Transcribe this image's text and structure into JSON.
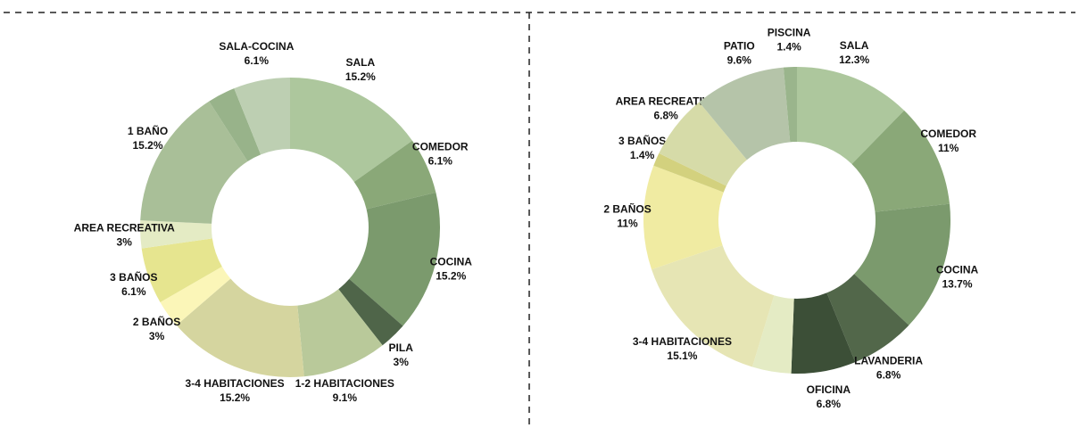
{
  "chart_data": [
    {
      "type": "pie",
      "categories": [
        "SALA",
        "COMEDOR",
        "COCINA",
        "PILA",
        "1-2 HABITACIONES",
        "3-4 HABITACIONES",
        "2 BAÑOS",
        "3 BAÑOS",
        "AREA RECREATIVA",
        "1 BAÑO",
        null,
        "SALA-COCINA"
      ],
      "values": [
        15.2,
        6.1,
        15.2,
        3,
        9.1,
        15.2,
        3,
        6.1,
        3,
        15.2,
        3,
        6.1
      ],
      "value_labels": [
        "15.2%",
        "6.1%",
        "15.2%",
        "3%",
        "9.1%",
        "15.2%",
        "3%",
        "6.1%",
        "3%",
        "15.2%",
        null,
        "6.1%"
      ],
      "colors": [
        "#adc79d",
        "#8aa878",
        "#7b9a6d",
        "#4f6549",
        "#b9c99a",
        "#d5d59f",
        "#fbf6b8",
        "#e6e58f",
        "#e4ebc4",
        "#a9bf98",
        "#98b38a",
        "#bdcfb2"
      ]
    },
    {
      "type": "pie",
      "categories": [
        "SALA",
        "COMEDOR",
        "COCINA",
        "LAVANDERIA",
        "OFICINA",
        null,
        "3-4 HABITACIONES",
        "2 BAÑOS",
        "3 BAÑOS",
        "AREA RECREATIVA",
        "PATIO",
        "PISCINA"
      ],
      "values": [
        12.3,
        11,
        13.7,
        6.8,
        6.8,
        4.1,
        15.1,
        11,
        1.4,
        6.8,
        9.6,
        1.4
      ],
      "value_labels": [
        "12.3%",
        "11%",
        "13.7%",
        "6.8%",
        "6.8%",
        null,
        "15.1%",
        "11%",
        "1.4%",
        "6.8%",
        "9.6%",
        "1.4%"
      ],
      "colors": [
        "#adc79d",
        "#8aa878",
        "#7b9a6d",
        "#52674a",
        "#3c4f37",
        "#e4ebc4",
        "#e6e5b4",
        "#f0eba2",
        "#d3d17e",
        "#d6dba8",
        "#b5c4a9",
        "#9ab58c"
      ]
    }
  ]
}
